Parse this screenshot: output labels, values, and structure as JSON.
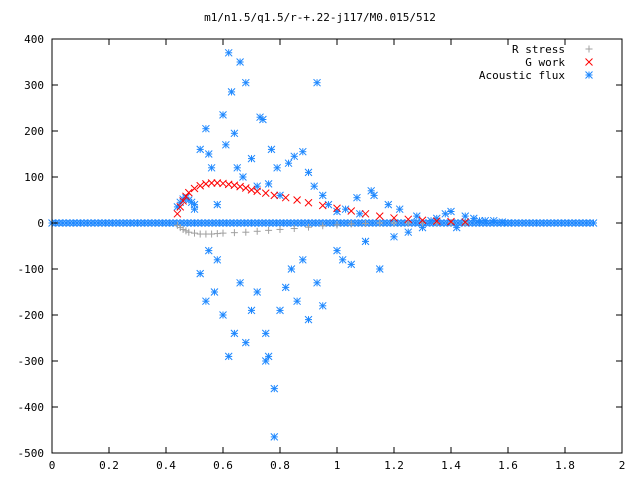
{
  "chart_data": {
    "type": "scatter",
    "title": "m1/n1.5/q1.5/r-+.22-j117/M0.015/512",
    "xlabel": "",
    "ylabel": "",
    "xlim": [
      0,
      2
    ],
    "ylim": [
      -500,
      400
    ],
    "xticks": [
      0,
      0.2,
      0.4,
      0.6,
      0.8,
      1,
      1.2,
      1.4,
      1.6,
      1.8,
      2
    ],
    "xtick_labels": [
      "0",
      "0.2",
      "0.4",
      "0.6",
      "0.8",
      "1",
      "1.2",
      "1.4",
      "1.6",
      "1.8",
      "2"
    ],
    "yticks": [
      -500,
      -400,
      -300,
      -200,
      -100,
      0,
      100,
      200,
      300,
      400
    ],
    "ytick_labels": [
      "-500",
      "-400",
      "-300",
      "-200",
      "-100",
      "0",
      "100",
      "200",
      "300",
      "400"
    ],
    "grid": false,
    "legend_position": "top-right",
    "series": [
      {
        "name": "R stress",
        "marker": "plus",
        "color": "#a0a0a0",
        "x": [
          0.44,
          0.45,
          0.46,
          0.47,
          0.48,
          0.5,
          0.52,
          0.54,
          0.56,
          0.58,
          0.6,
          0.64,
          0.68,
          0.72,
          0.76,
          0.8,
          0.85,
          0.9,
          0.95,
          1.0,
          1.05,
          1.1,
          1.15,
          1.2,
          1.25,
          1.3,
          1.35,
          1.4,
          1.45
        ],
        "y": [
          -5,
          -10,
          -14,
          -17,
          -20,
          -22,
          -24,
          -24,
          -24,
          -23,
          -22,
          -21,
          -20,
          -18,
          -16,
          -14,
          -12,
          -9,
          -6,
          -4,
          -2,
          -1,
          0,
          0,
          0,
          0,
          0,
          0,
          0
        ]
      },
      {
        "name": "G work",
        "marker": "cross",
        "color": "#ff0000",
        "x": [
          0.44,
          0.45,
          0.46,
          0.47,
          0.48,
          0.5,
          0.52,
          0.54,
          0.56,
          0.58,
          0.6,
          0.62,
          0.64,
          0.66,
          0.68,
          0.7,
          0.72,
          0.75,
          0.78,
          0.82,
          0.86,
          0.9,
          0.95,
          1.0,
          1.05,
          1.1,
          1.15,
          1.2,
          1.25,
          1.3,
          1.35,
          1.4,
          1.45
        ],
        "y": [
          20,
          35,
          48,
          58,
          66,
          75,
          81,
          85,
          87,
          87,
          86,
          84,
          82,
          79,
          76,
          72,
          69,
          65,
          60,
          55,
          50,
          44,
          38,
          32,
          26,
          20,
          15,
          11,
          8,
          6,
          4,
          3,
          2
        ]
      },
      {
        "name": "Acoustic flux",
        "marker": "star",
        "color": "#1e88ff",
        "baseline": {
          "x_start": 0.0,
          "x_end": 1.9,
          "step": 0.0125,
          "y": 0
        },
        "x": [
          0.44,
          0.45,
          0.46,
          0.47,
          0.48,
          0.49,
          0.5,
          0.5,
          0.52,
          0.52,
          0.54,
          0.54,
          0.55,
          0.55,
          0.56,
          0.57,
          0.58,
          0.58,
          0.6,
          0.6,
          0.61,
          0.62,
          0.62,
          0.63,
          0.64,
          0.64,
          0.65,
          0.66,
          0.66,
          0.67,
          0.68,
          0.68,
          0.7,
          0.7,
          0.72,
          0.72,
          0.73,
          0.74,
          0.75,
          0.75,
          0.76,
          0.76,
          0.77,
          0.78,
          0.78,
          0.79,
          0.8,
          0.8,
          0.82,
          0.83,
          0.84,
          0.85,
          0.86,
          0.88,
          0.88,
          0.9,
          0.9,
          0.92,
          0.93,
          0.93,
          0.95,
          0.95,
          0.97,
          1.0,
          1.0,
          1.02,
          1.03,
          1.05,
          1.07,
          1.08,
          1.1,
          1.12,
          1.13,
          1.15,
          1.18,
          1.2,
          1.22,
          1.25,
          1.28,
          1.3,
          1.33,
          1.35,
          1.38,
          1.4,
          1.42,
          1.45,
          1.48,
          1.5,
          1.52,
          1.55,
          1.58,
          1.6
        ],
        "y": [
          35,
          45,
          52,
          55,
          50,
          45,
          40,
          30,
          160,
          -110,
          205,
          -170,
          150,
          -60,
          120,
          -150,
          -80,
          40,
          235,
          -200,
          170,
          370,
          -290,
          285,
          195,
          -240,
          120,
          350,
          -130,
          100,
          305,
          -260,
          140,
          -190,
          80,
          -150,
          230,
          225,
          -300,
          -240,
          85,
          -290,
          160,
          -360,
          -465,
          120,
          -190,
          60,
          -140,
          130,
          -100,
          145,
          -170,
          155,
          -80,
          110,
          -210,
          80,
          -130,
          305,
          -180,
          60,
          40,
          -60,
          25,
          -80,
          30,
          -90,
          55,
          20,
          -40,
          70,
          60,
          -100,
          40,
          -30,
          30,
          -20,
          15,
          -10,
          5,
          10,
          20,
          25,
          -10,
          15,
          10,
          5,
          5,
          5,
          2,
          0
        ]
      }
    ]
  }
}
